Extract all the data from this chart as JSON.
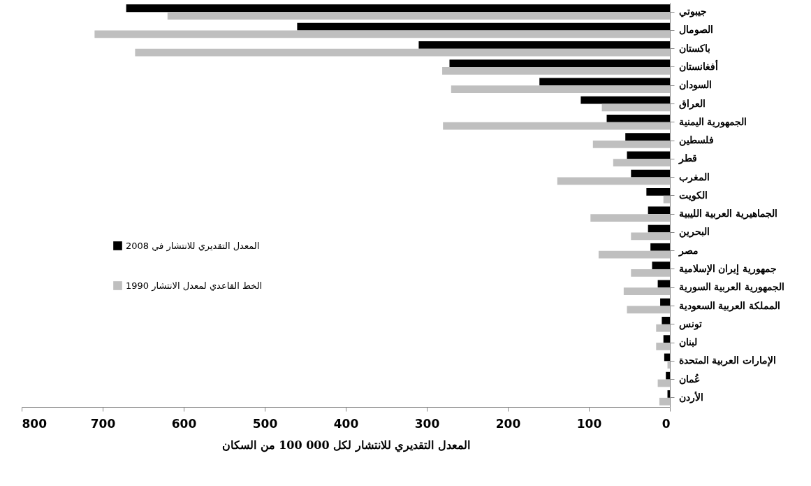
{
  "chart_data": {
    "type": "bar",
    "orientation": "horizontal",
    "categories": [
      "جيبوتي",
      "الصومال",
      "باكستان",
      "أفغانستان",
      "السودان",
      "العراق",
      "الجمهورية اليمنية",
      "فلسطين",
      "قطر",
      "المغرب",
      "الكويت",
      "الجماهيرية العربية الليبية",
      "البحرين",
      "مصر",
      "جمهورية إيران الإسلامية",
      "الجمهورية العربية السورية",
      "المملكة العربية السعودية",
      "تونس",
      "لبنان",
      "الإمارات العربية المتحدة",
      "عُمان",
      "الأردن"
    ],
    "series": [
      {
        "name": "المعدل التقديري للانتشار في 2008",
        "color": "#000000",
        "values": [
          671,
          460,
          310,
          272,
          161,
          110,
          78,
          55,
          53,
          48,
          29,
          27,
          27,
          24,
          22,
          15,
          12,
          10,
          8,
          7,
          5,
          3
        ]
      },
      {
        "name": "الخط القاعدي لمعدل الانتشار 1990",
        "color": "#bfbfbf",
        "values": [
          620,
          710,
          660,
          281,
          270,
          84,
          280,
          95,
          70,
          139,
          8,
          98,
          48,
          88,
          48,
          57,
          53,
          17,
          17,
          3,
          15,
          13
        ]
      }
    ],
    "xlim": [
      800,
      0
    ],
    "xticks": [
      800,
      700,
      600,
      500,
      400,
      300,
      200,
      100,
      0
    ],
    "xlabel": "المعدل التقديري للانتشار لكل 000 100 من السكان",
    "grid": false,
    "legend": "left"
  }
}
